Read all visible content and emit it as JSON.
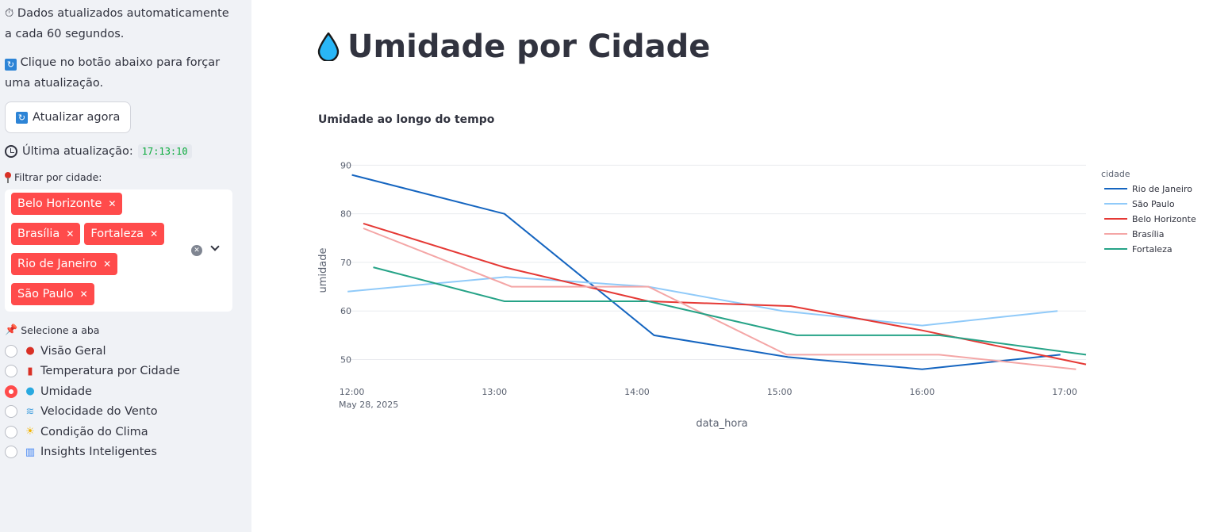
{
  "sidebar": {
    "auto_text": "Dados atualizados automaticamente a cada 60 segundos.",
    "force_text": "Clique no botão abaixo para forçar uma atualização.",
    "refresh_button": "Atualizar agora",
    "last_update_label": "Última atualização:",
    "last_update_value": "17:13:10",
    "filter_label": "Filtrar por cidade:",
    "selected_cities": [
      "Belo Horizonte",
      "Brasília",
      "Fortaleza",
      "Rio de Janeiro",
      "São Paulo"
    ],
    "tab_label": "Selecione a aba",
    "tabs": [
      {
        "label": "Visão Geral",
        "icon": "pin-icon",
        "selected": false
      },
      {
        "label": "Temperatura por Cidade",
        "icon": "thermometer-icon",
        "selected": false
      },
      {
        "label": "Umidade",
        "icon": "droplet-icon",
        "selected": true
      },
      {
        "label": "Velocidade do Vento",
        "icon": "wind-icon",
        "selected": false
      },
      {
        "label": "Condição do Clima",
        "icon": "sun-cloud-icon",
        "selected": false
      },
      {
        "label": "Insights Inteligentes",
        "icon": "bar-chart-icon",
        "selected": false
      }
    ]
  },
  "main": {
    "title": "Umidade por Cidade",
    "chart_title": "Umidade ao longo do tempo"
  },
  "chart_data": {
    "type": "line",
    "xlabel": "data_hora",
    "ylabel": "umidade",
    "x_ticks": [
      "12:00",
      "13:00",
      "14:00",
      "15:00",
      "16:00",
      "17:00"
    ],
    "x_date_label": "May 28, 2025",
    "y_ticks": [
      50,
      60,
      70,
      80,
      90
    ],
    "ylim": [
      46,
      93
    ],
    "x_range_hours": [
      11.93,
      17.15
    ],
    "legend_title": "cidade",
    "legend_position": "right",
    "grid": true,
    "series": [
      {
        "name": "Rio de Janeiro",
        "color": "#1565c0",
        "points": [
          [
            12.0,
            88
          ],
          [
            13.07,
            80
          ],
          [
            14.12,
            55
          ],
          [
            15.06,
            50.5
          ],
          [
            16.0,
            48
          ],
          [
            16.97,
            51
          ]
        ]
      },
      {
        "name": "São Paulo",
        "color": "#90caf9",
        "points": [
          [
            11.97,
            64
          ],
          [
            13.08,
            67
          ],
          [
            14.08,
            65
          ],
          [
            15.02,
            60
          ],
          [
            16.0,
            57
          ],
          [
            16.95,
            60
          ]
        ]
      },
      {
        "name": "Belo Horizonte",
        "color": "#e53935",
        "points": [
          [
            12.08,
            78
          ],
          [
            13.07,
            69
          ],
          [
            14.08,
            62
          ],
          [
            15.08,
            61
          ],
          [
            16.0,
            56
          ],
          [
            17.15,
            49
          ]
        ]
      },
      {
        "name": "Brasília",
        "color": "#f4a6a6",
        "points": [
          [
            12.08,
            77
          ],
          [
            13.12,
            65
          ],
          [
            14.08,
            65
          ],
          [
            15.05,
            51
          ],
          [
            16.12,
            51
          ],
          [
            17.08,
            48
          ]
        ]
      },
      {
        "name": "Fortaleza",
        "color": "#26a387",
        "points": [
          [
            12.15,
            69
          ],
          [
            13.07,
            62
          ],
          [
            14.08,
            62
          ],
          [
            15.12,
            55
          ],
          [
            16.12,
            55
          ],
          [
            17.15,
            51
          ]
        ]
      }
    ]
  }
}
